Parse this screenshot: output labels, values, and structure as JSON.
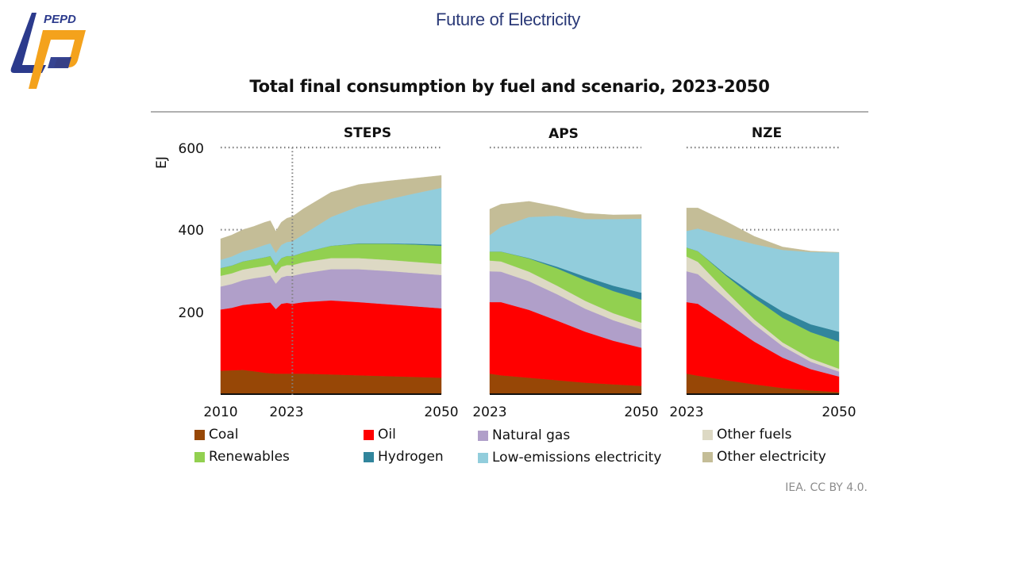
{
  "slide": {
    "title": "Future of Electricity",
    "logo_text": "PEPD",
    "logo_colors": {
      "blue": "#2b3a8c",
      "orange": "#f4a21c"
    }
  },
  "credit": "IEA. CC BY 4.0.",
  "chart_data": {
    "type": "area",
    "title": "Total final consumption by fuel and scenario, 2023-2050",
    "ylabel": "EJ",
    "ylim": [
      0,
      600
    ],
    "yticks": [
      "200",
      "400",
      "600"
    ],
    "ytick_values": [
      200,
      400,
      600
    ],
    "grid": "dotted horizontal at 400 and 600",
    "legend_position": "bottom",
    "series_names": [
      "Coal",
      "Oil",
      "Natural gas",
      "Other fuels",
      "Renewables",
      "Hydrogen",
      "Low-emissions electricity",
      "Other electricity"
    ],
    "series_colors": [
      "#974706",
      "#ff0000",
      "#b09fc9",
      "#ddd9c4",
      "#92d050",
      "#31859c",
      "#92cddc",
      "#c4bd97"
    ],
    "panels": [
      {
        "name": "STEPS",
        "x_ticks": [
          "2010",
          "2023",
          "2050"
        ],
        "marker_year": 2023,
        "x": [
          2010,
          2012,
          2014,
          2016,
          2018,
          2019,
          2020,
          2021,
          2022,
          2023,
          2025,
          2030,
          2035,
          2040,
          2045,
          2050
        ],
        "series": [
          {
            "name": "Coal",
            "values": [
              57,
              58,
              59,
              56,
              52,
              51,
              50,
              50,
              50,
              50,
              50,
              48,
              46,
              44,
              42,
              40
            ]
          },
          {
            "name": "Oil",
            "values": [
              149,
              152,
              158,
              164,
              170,
              172,
              157,
              170,
              172,
              170,
              174,
              180,
              178,
              175,
              172,
              169
            ]
          },
          {
            "name": "Natural gas",
            "values": [
              56,
              58,
              60,
              62,
              64,
              66,
              62,
              64,
              66,
              68,
              70,
              76,
              80,
              81,
              81,
              81
            ]
          },
          {
            "name": "Other fuels",
            "values": [
              26,
              26,
              26,
              26,
              26,
              26,
              25,
              26,
              26,
              26,
              27,
              27,
              27,
              27,
              27,
              27
            ]
          },
          {
            "name": "Renewables",
            "values": [
              19,
              19,
              20,
              20,
              21,
              21,
              20,
              21,
              22,
              22,
              24,
              30,
              35,
              39,
              42,
              44
            ]
          },
          {
            "name": "Hydrogen",
            "values": [
              0,
              0,
              0,
              0,
              0,
              0,
              0,
              0,
              0,
              0,
              0,
              0,
              1,
              1,
              2,
              3
            ]
          },
          {
            "name": "Low-emissions electricity",
            "values": [
              20,
              22,
              24,
              26,
              30,
              31,
              30,
              32,
              34,
              36,
              44,
              70,
              90,
              106,
              122,
              138
            ]
          },
          {
            "name": "Other electricity",
            "values": [
              51,
              52,
              53,
              54,
              55,
              55,
              52,
              55,
              58,
              60,
              62,
              60,
              53,
              45,
              37,
              30
            ]
          }
        ]
      },
      {
        "name": "APS",
        "x_ticks": [
          "2023",
          "2050"
        ],
        "x": [
          2023,
          2025,
          2030,
          2035,
          2040,
          2045,
          2050
        ],
        "series": [
          {
            "name": "Coal",
            "values": [
              50,
              46,
              40,
              34,
              28,
              24,
              20
            ]
          },
          {
            "name": "Oil",
            "values": [
              174,
              178,
              165,
              145,
              124,
              106,
              93
            ]
          },
          {
            "name": "Natural gas",
            "values": [
              75,
              74,
              70,
              64,
              56,
              50,
              45
            ]
          },
          {
            "name": "Other fuels",
            "values": [
              26,
              25,
              23,
              21,
              19,
              17,
              16
            ]
          },
          {
            "name": "Renewables",
            "values": [
              22,
              24,
              32,
              42,
              50,
              54,
              56
            ]
          },
          {
            "name": "Hydrogen",
            "values": [
              0,
              0,
              1,
              4,
              9,
              13,
              17
            ]
          },
          {
            "name": "Low-emissions electricity",
            "values": [
              40,
              60,
              100,
              124,
              140,
              162,
              180
            ]
          },
          {
            "name": "Other electricity",
            "values": [
              63,
              55,
              38,
              22,
              14,
              10,
              10
            ]
          }
        ]
      },
      {
        "name": "NZE",
        "x_ticks": [
          "2023",
          "2050"
        ],
        "x": [
          2023,
          2025,
          2030,
          2035,
          2040,
          2045,
          2050
        ],
        "series": [
          {
            "name": "Coal",
            "values": [
              50,
              45,
              34,
              24,
              15,
              9,
              5
            ]
          },
          {
            "name": "Oil",
            "values": [
              174,
              175,
              140,
              104,
              74,
              52,
              38
            ]
          },
          {
            "name": "Natural gas",
            "values": [
              75,
              72,
              58,
              42,
              28,
              18,
              12
            ]
          },
          {
            "name": "Other fuels",
            "values": [
              36,
              30,
              18,
              12,
              9,
              8,
              7
            ]
          },
          {
            "name": "Renewables",
            "values": [
              22,
              26,
              38,
              52,
              60,
              64,
              66
            ]
          },
          {
            "name": "Hydrogen",
            "values": [
              0,
              0,
              3,
              9,
              15,
              19,
              24
            ]
          },
          {
            "name": "Low-emissions electricity",
            "values": [
              40,
              55,
              92,
              122,
              150,
              176,
              193
            ]
          },
          {
            "name": "Other electricity",
            "values": [
              56,
              50,
              37,
              19,
              7,
              2,
              0
            ]
          }
        ]
      }
    ]
  }
}
